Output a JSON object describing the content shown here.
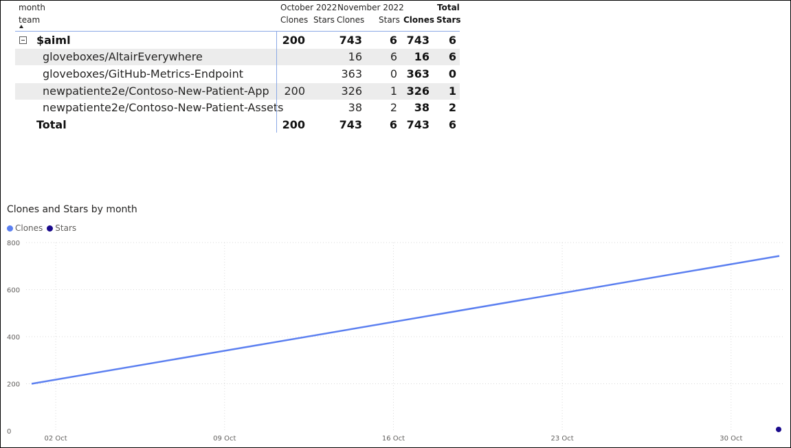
{
  "matrix": {
    "row_header_1": "month",
    "row_header_2": "team",
    "col_groups": [
      "October 2022",
      "November 2022",
      "Total"
    ],
    "sub_headers": [
      "Clones",
      "Stars",
      "Clones",
      "Stars",
      "Clones",
      "Stars"
    ],
    "rows": [
      {
        "label": "$aiml",
        "oct_clones": "200",
        "oct_stars": "",
        "nov_clones": "743",
        "nov_stars": "6",
        "tot_clones": "743",
        "tot_stars": "6"
      },
      {
        "label": "gloveboxes/AltairEverywhere",
        "oct_clones": "",
        "oct_stars": "",
        "nov_clones": "16",
        "nov_stars": "6",
        "tot_clones": "16",
        "tot_stars": "6"
      },
      {
        "label": "gloveboxes/GitHub-Metrics-Endpoint",
        "oct_clones": "",
        "oct_stars": "",
        "nov_clones": "363",
        "nov_stars": "0",
        "tot_clones": "363",
        "tot_stars": "0"
      },
      {
        "label": "newpatiente2e/Contoso-New-Patient-App",
        "oct_clones": "200",
        "oct_stars": "",
        "nov_clones": "326",
        "nov_stars": "1",
        "tot_clones": "326",
        "tot_stars": "1"
      },
      {
        "label": "newpatiente2e/Contoso-New-Patient-Assets",
        "oct_clones": "",
        "oct_stars": "",
        "nov_clones": "38",
        "nov_stars": "2",
        "tot_clones": "38",
        "tot_stars": "2"
      },
      {
        "label": "Total",
        "oct_clones": "200",
        "oct_stars": "",
        "nov_clones": "743",
        "nov_stars": "6",
        "tot_clones": "743",
        "tot_stars": "6"
      }
    ]
  },
  "chart_data": {
    "type": "line",
    "title": "Clones and Stars by month",
    "xlabel": "",
    "ylabel": "",
    "x_type": "date",
    "ylim": [
      0,
      800
    ],
    "y_ticks": [
      0,
      200,
      400,
      600,
      800
    ],
    "x_ticks": [
      "2022-10-02",
      "2022-10-09",
      "2022-10-16",
      "2022-10-23",
      "2022-10-30"
    ],
    "x_tick_labels": [
      "02 Oct",
      "09 Oct",
      "16 Oct",
      "23 Oct",
      "30 Oct"
    ],
    "xlim": [
      "2022-10-01",
      "2022-11-01"
    ],
    "grid": true,
    "legend_position": "top-left",
    "series": [
      {
        "name": "Clones",
        "color": "#5b7ff0",
        "points": [
          {
            "x": "2022-10-01",
            "y": 200
          },
          {
            "x": "2022-11-01",
            "y": 743
          }
        ]
      },
      {
        "name": "Stars",
        "color": "#1a0a8c",
        "points": [
          {
            "x": "2022-11-01",
            "y": 6
          }
        ]
      }
    ]
  }
}
